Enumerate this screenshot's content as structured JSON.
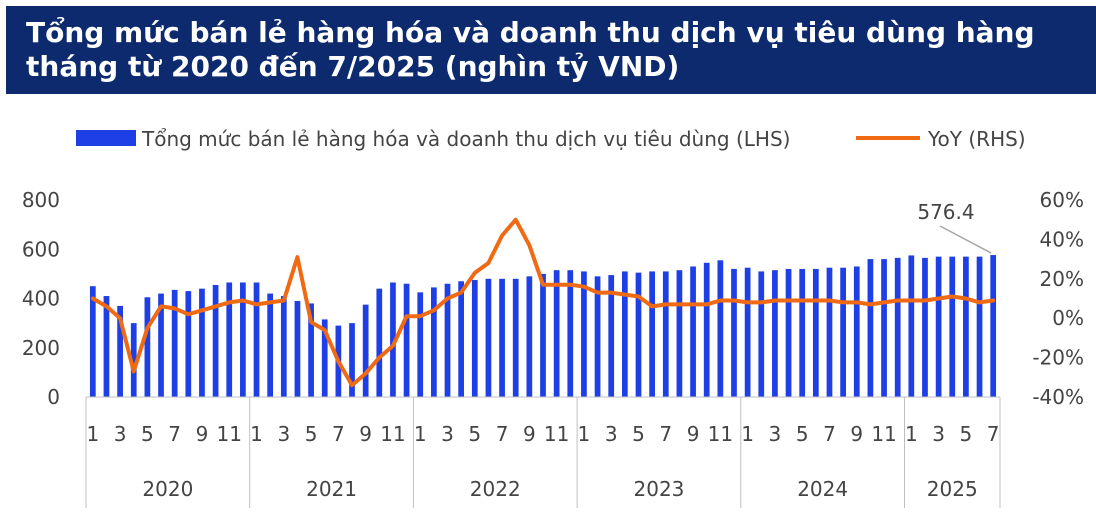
{
  "title": "Tổng mức bán lẻ hàng hóa và doanh thu dịch vụ tiêu dùng hàng tháng từ 2020 đến 7/2025 (nghìn tỷ VND)",
  "chart_data": {
    "type": "bar+line",
    "legend_position": "top",
    "legend": [
      "Tổng mức bán lẻ hàng hóa và doanh thu dịch vụ tiêu dùng (LHS)",
      "YoY (RHS)"
    ],
    "colors": {
      "bar": "#1f3fe6",
      "line": "#ef6a13",
      "title_bg": "#0d2a6e"
    },
    "y_left": {
      "min": 0,
      "max": 800,
      "ticks": [
        0,
        200,
        400,
        600,
        800
      ]
    },
    "y_right": {
      "min": -40,
      "max": 60,
      "ticks": [
        "-40%",
        "-20%",
        "0%",
        "20%",
        "40%",
        "60%"
      ]
    },
    "years": [
      {
        "label": "2020",
        "months": 12
      },
      {
        "label": "2021",
        "months": 12
      },
      {
        "label": "2022",
        "months": 12
      },
      {
        "label": "2023",
        "months": 12
      },
      {
        "label": "2024",
        "months": 12
      },
      {
        "label": "2025",
        "months": 7
      }
    ],
    "month_labels": [
      "1",
      "",
      "3",
      "",
      "5",
      "",
      "7",
      "",
      "9",
      "",
      "11",
      ""
    ],
    "bar_values": [
      450,
      410,
      370,
      300,
      405,
      420,
      435,
      430,
      440,
      455,
      465,
      465,
      465,
      420,
      410,
      390,
      380,
      315,
      290,
      300,
      375,
      440,
      465,
      460,
      425,
      445,
      460,
      470,
      475,
      480,
      480,
      480,
      490,
      500,
      515,
      515,
      510,
      490,
      495,
      510,
      505,
      510,
      510,
      515,
      530,
      545,
      555,
      520,
      525,
      510,
      515,
      520,
      520,
      520,
      525,
      525,
      530,
      560,
      560,
      565,
      575,
      565,
      570,
      570,
      570,
      570,
      576.4
    ],
    "yoy_values": [
      10,
      6,
      0,
      -27,
      -5,
      6,
      5,
      2,
      4,
      6,
      8,
      9,
      7,
      8,
      9,
      31,
      -2,
      -6,
      -22,
      -34,
      -28,
      -20,
      -14,
      1,
      1,
      4,
      10,
      13,
      23,
      28,
      42,
      50,
      37,
      17,
      17,
      17,
      16,
      13,
      13,
      12,
      11,
      6,
      7,
      7,
      7,
      7,
      9,
      9,
      8,
      8,
      9,
      9,
      9,
      9,
      9,
      8,
      8,
      7,
      8,
      9,
      9,
      9,
      10,
      11,
      10,
      8,
      9
    ],
    "annotation": {
      "text": "576.4"
    }
  }
}
